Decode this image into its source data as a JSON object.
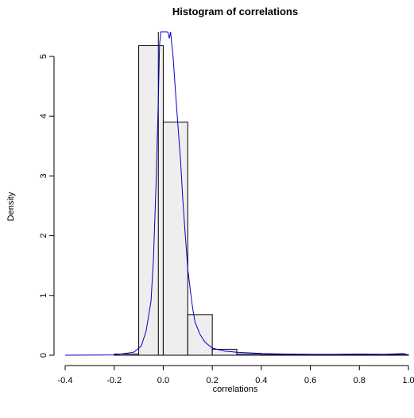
{
  "chart_data": {
    "type": "histogram",
    "title": "Histogram of correlations",
    "xlabel": "correlations",
    "ylabel": "Density",
    "xlim": [
      -0.4,
      1.0
    ],
    "ylim": [
      0,
      5.2
    ],
    "xticks": [
      -0.4,
      -0.2,
      0.0,
      0.2,
      0.4,
      0.6,
      0.8,
      1.0
    ],
    "xtick_labels": [
      "-0.4",
      "-0.2",
      "0.0",
      "0.2",
      "0.4",
      "0.6",
      "0.8",
      "1.0"
    ],
    "yticks": [
      0,
      1,
      2,
      3,
      4,
      5
    ],
    "ytick_labels": [
      "0",
      "1",
      "2",
      "3",
      "4",
      "5"
    ],
    "bins": [
      {
        "x0": -0.2,
        "x1": -0.1,
        "density": 0.02
      },
      {
        "x0": -0.1,
        "x1": 0.0,
        "density": 5.18
      },
      {
        "x0": 0.0,
        "x1": 0.1,
        "density": 3.9
      },
      {
        "x0": 0.1,
        "x1": 0.2,
        "density": 0.68
      },
      {
        "x0": 0.2,
        "x1": 0.3,
        "density": 0.1
      },
      {
        "x0": 0.3,
        "x1": 0.4,
        "density": 0.02
      },
      {
        "x0": 0.4,
        "x1": 0.5,
        "density": 0.01
      },
      {
        "x0": 0.5,
        "x1": 0.6,
        "density": 0.01
      },
      {
        "x0": 0.6,
        "x1": 0.7,
        "density": 0.01
      },
      {
        "x0": 0.7,
        "x1": 0.8,
        "density": 0.01
      },
      {
        "x0": 0.8,
        "x1": 0.9,
        "density": 0.01
      },
      {
        "x0": 0.9,
        "x1": 1.0,
        "density": 0.01
      }
    ],
    "density_curve": {
      "color": "#0000cc",
      "x": [
        -0.4,
        -0.2,
        -0.12,
        -0.09,
        -0.07,
        -0.05,
        -0.04,
        -0.03,
        -0.02,
        -0.015,
        -0.01,
        -0.005,
        0.0,
        0.005,
        0.01,
        0.015,
        0.02,
        0.025,
        0.03,
        0.035,
        0.04,
        0.05,
        0.06,
        0.07,
        0.08,
        0.09,
        0.1,
        0.11,
        0.12,
        0.13,
        0.15,
        0.17,
        0.2,
        0.25,
        0.3,
        0.4,
        0.5,
        0.6,
        0.7,
        0.8,
        0.9,
        0.98,
        1.0
      ],
      "y": [
        0.0,
        0.005,
        0.05,
        0.15,
        0.4,
        0.9,
        1.6,
        2.8,
        4.3,
        5.2,
        5.6,
        5.6,
        5.5,
        5.6,
        5.5,
        5.5,
        5.4,
        5.3,
        5.45,
        5.2,
        5.0,
        4.4,
        3.85,
        3.3,
        2.6,
        2.0,
        1.45,
        1.1,
        0.78,
        0.55,
        0.35,
        0.22,
        0.12,
        0.07,
        0.05,
        0.03,
        0.02,
        0.015,
        0.015,
        0.02,
        0.015,
        0.03,
        0.0
      ]
    },
    "vertical_line": {
      "x": -0.02,
      "color": "#000000"
    },
    "bar_fill": "#eeeeee",
    "bar_stroke": "#000000",
    "grid": false,
    "legend": "none"
  }
}
